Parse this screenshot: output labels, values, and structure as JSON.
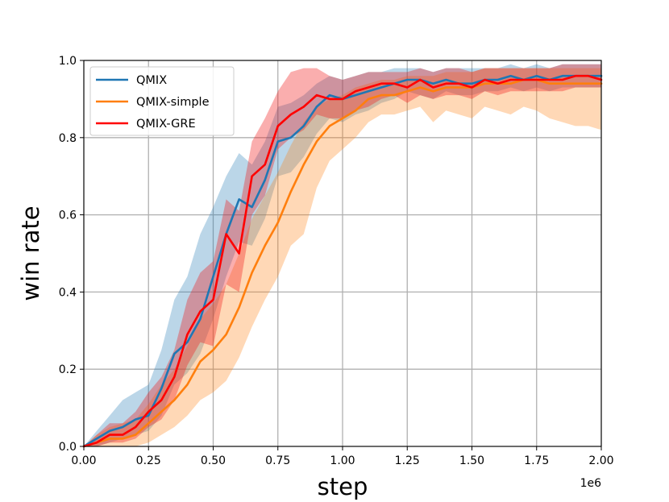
{
  "chart_data": {
    "type": "line",
    "title": "",
    "xlabel": "step",
    "ylabel": "win rate",
    "x_offset_label": "1e6",
    "xlim": [
      0.0,
      2.0
    ],
    "ylim": [
      0.0,
      1.0
    ],
    "xticks": [
      "0.00",
      "0.25",
      "0.50",
      "0.75",
      "1.00",
      "1.25",
      "1.50",
      "1.75",
      "2.00"
    ],
    "yticks": [
      "0.0",
      "0.2",
      "0.4",
      "0.6",
      "0.8",
      "1.0"
    ],
    "grid": true,
    "legend_position": "upper-left",
    "x": [
      0.0,
      0.05,
      0.1,
      0.15,
      0.2,
      0.25,
      0.3,
      0.35,
      0.4,
      0.45,
      0.5,
      0.55,
      0.6,
      0.65,
      0.7,
      0.75,
      0.8,
      0.85,
      0.9,
      0.95,
      1.0,
      1.05,
      1.1,
      1.15,
      1.2,
      1.25,
      1.3,
      1.35,
      1.4,
      1.45,
      1.5,
      1.55,
      1.6,
      1.65,
      1.7,
      1.75,
      1.8,
      1.85,
      1.9,
      1.95,
      2.0
    ],
    "series": [
      {
        "name": "QMIX",
        "color": "#1f77b4",
        "band_color": "#1f77b4",
        "mean": [
          0.0,
          0.02,
          0.04,
          0.05,
          0.07,
          0.08,
          0.15,
          0.24,
          0.27,
          0.33,
          0.44,
          0.55,
          0.64,
          0.62,
          0.69,
          0.79,
          0.8,
          0.83,
          0.88,
          0.91,
          0.9,
          0.91,
          0.92,
          0.93,
          0.94,
          0.95,
          0.95,
          0.94,
          0.95,
          0.94,
          0.94,
          0.95,
          0.95,
          0.96,
          0.95,
          0.96,
          0.95,
          0.96,
          0.96,
          0.96,
          0.96
        ],
        "lower": [
          0.0,
          0.0,
          0.01,
          0.02,
          0.03,
          0.04,
          0.08,
          0.16,
          0.19,
          0.24,
          0.33,
          0.44,
          0.53,
          0.52,
          0.59,
          0.7,
          0.71,
          0.75,
          0.81,
          0.85,
          0.84,
          0.86,
          0.87,
          0.89,
          0.9,
          0.92,
          0.91,
          0.9,
          0.92,
          0.91,
          0.91,
          0.92,
          0.92,
          0.93,
          0.92,
          0.93,
          0.92,
          0.93,
          0.93,
          0.93,
          0.93
        ],
        "upper": [
          0.0,
          0.04,
          0.08,
          0.12,
          0.14,
          0.16,
          0.25,
          0.38,
          0.44,
          0.55,
          0.62,
          0.7,
          0.76,
          0.73,
          0.79,
          0.88,
          0.89,
          0.91,
          0.94,
          0.96,
          0.95,
          0.96,
          0.97,
          0.97,
          0.98,
          0.98,
          0.98,
          0.97,
          0.98,
          0.98,
          0.98,
          0.98,
          0.98,
          0.99,
          0.98,
          0.99,
          0.98,
          0.99,
          0.99,
          0.99,
          0.99
        ]
      },
      {
        "name": "QMIX-simple",
        "color": "#ff7f0e",
        "band_color": "#ff7f0e",
        "mean": [
          0.0,
          0.01,
          0.02,
          0.02,
          0.03,
          0.06,
          0.09,
          0.12,
          0.16,
          0.22,
          0.25,
          0.29,
          0.36,
          0.45,
          0.52,
          0.58,
          0.66,
          0.73,
          0.79,
          0.83,
          0.85,
          0.87,
          0.9,
          0.91,
          0.91,
          0.92,
          0.93,
          0.92,
          0.93,
          0.93,
          0.93,
          0.94,
          0.94,
          0.94,
          0.95,
          0.95,
          0.94,
          0.94,
          0.94,
          0.94,
          0.94
        ],
        "lower": [
          0.0,
          0.0,
          0.0,
          0.0,
          0.0,
          0.01,
          0.03,
          0.05,
          0.08,
          0.12,
          0.14,
          0.17,
          0.23,
          0.31,
          0.38,
          0.44,
          0.52,
          0.55,
          0.67,
          0.74,
          0.77,
          0.8,
          0.84,
          0.86,
          0.86,
          0.87,
          0.88,
          0.84,
          0.87,
          0.86,
          0.85,
          0.88,
          0.87,
          0.86,
          0.88,
          0.87,
          0.85,
          0.84,
          0.83,
          0.83,
          0.82
        ],
        "upper": [
          0.0,
          0.03,
          0.05,
          0.06,
          0.07,
          0.11,
          0.16,
          0.2,
          0.26,
          0.33,
          0.37,
          0.42,
          0.5,
          0.59,
          0.65,
          0.71,
          0.78,
          0.84,
          0.88,
          0.9,
          0.91,
          0.93,
          0.94,
          0.95,
          0.95,
          0.96,
          0.96,
          0.96,
          0.97,
          0.97,
          0.97,
          0.98,
          0.98,
          0.98,
          0.98,
          0.98,
          0.98,
          0.98,
          0.98,
          0.98,
          0.98
        ]
      },
      {
        "name": "QMIX-GRE",
        "color": "#ff0000",
        "band_color": "#f01818",
        "mean": [
          0.0,
          0.01,
          0.03,
          0.03,
          0.05,
          0.09,
          0.12,
          0.18,
          0.29,
          0.35,
          0.38,
          0.55,
          0.5,
          0.7,
          0.73,
          0.83,
          0.86,
          0.88,
          0.91,
          0.9,
          0.9,
          0.92,
          0.93,
          0.94,
          0.94,
          0.93,
          0.95,
          0.93,
          0.94,
          0.94,
          0.93,
          0.95,
          0.94,
          0.95,
          0.95,
          0.95,
          0.95,
          0.95,
          0.96,
          0.96,
          0.95
        ],
        "lower": [
          0.0,
          0.0,
          0.01,
          0.01,
          0.02,
          0.05,
          0.07,
          0.12,
          0.21,
          0.27,
          0.26,
          0.42,
          0.4,
          0.6,
          0.65,
          0.77,
          0.8,
          0.82,
          0.86,
          0.85,
          0.85,
          0.87,
          0.88,
          0.9,
          0.91,
          0.89,
          0.91,
          0.9,
          0.91,
          0.91,
          0.9,
          0.92,
          0.91,
          0.92,
          0.92,
          0.92,
          0.92,
          0.92,
          0.93,
          0.93,
          0.93
        ],
        "upper": [
          0.0,
          0.03,
          0.06,
          0.06,
          0.09,
          0.14,
          0.18,
          0.25,
          0.38,
          0.45,
          0.48,
          0.64,
          0.61,
          0.79,
          0.85,
          0.92,
          0.97,
          0.98,
          0.98,
          0.96,
          0.95,
          0.96,
          0.97,
          0.97,
          0.97,
          0.97,
          0.98,
          0.97,
          0.98,
          0.98,
          0.97,
          0.98,
          0.98,
          0.98,
          0.98,
          0.98,
          0.98,
          0.99,
          0.99,
          0.99,
          0.99
        ]
      }
    ]
  }
}
